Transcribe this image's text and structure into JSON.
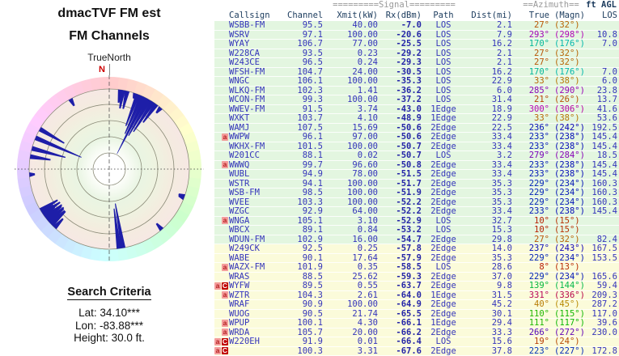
{
  "left_panel": {
    "title_line1": "dmacTVF FM est",
    "title_line2": "FM Channels",
    "compass_label": "TrueNorth",
    "north_marker": "N",
    "search_criteria": {
      "heading": "Search Criteria",
      "lat": "Lat: 34.10***",
      "lon": "Lon: -83.88***",
      "height": "Height: 30.0 ft."
    }
  },
  "table": {
    "banners": {
      "signal": "=========Signal=========",
      "azimuth": "==Azimuth==",
      "ft_agl": "ft AGL"
    },
    "headers": {
      "callsign": "Callsign",
      "channel": "Channel",
      "xmit": "Xmit(kW)",
      "rx": "Rx(dBm)",
      "path": "Path",
      "dist": "Dist(mi)",
      "true": "True",
      "magn": "(Magn)",
      "los": "LOS"
    },
    "rows": [
      {
        "badges": [],
        "callsign": "WSBB-FM",
        "channel": "95.5",
        "xmit": "40.00",
        "rx": "-7.0",
        "path": "LOS",
        "dist": "2.1",
        "true": "27°",
        "magn": "(32°)",
        "los": ""
      },
      {
        "badges": [],
        "callsign": "WSRV",
        "channel": "97.1",
        "xmit": "100.00",
        "rx": "-20.6",
        "path": "LOS",
        "dist": "7.9",
        "true": "293°",
        "magn": "(298°)",
        "los": "10.8"
      },
      {
        "badges": [],
        "callsign": "WYAY",
        "channel": "106.7",
        "xmit": "77.00",
        "rx": "-25.5",
        "path": "LOS",
        "dist": "16.2",
        "true": "170°",
        "magn": "(176°)",
        "los": "7.0"
      },
      {
        "badges": [],
        "callsign": "W228CA",
        "channel": "93.5",
        "xmit": "0.23",
        "rx": "-29.2",
        "path": "LOS",
        "dist": "2.1",
        "true": "27°",
        "magn": "(32°)",
        "los": ""
      },
      {
        "badges": [],
        "callsign": "W243CE",
        "channel": "96.5",
        "xmit": "0.24",
        "rx": "-29.3",
        "path": "LOS",
        "dist": "2.1",
        "true": "27°",
        "magn": "(32°)",
        "los": ""
      },
      {
        "badges": [],
        "callsign": "WFSH-FM",
        "channel": "104.7",
        "xmit": "24.00",
        "rx": "-30.5",
        "path": "LOS",
        "dist": "16.2",
        "true": "170°",
        "magn": "(176°)",
        "los": "7.0"
      },
      {
        "badges": [],
        "callsign": "WNGC",
        "channel": "106.1",
        "xmit": "100.00",
        "rx": "-35.3",
        "path": "LOS",
        "dist": "22.9",
        "true": "33°",
        "magn": "(38°)",
        "los": "6.0"
      },
      {
        "badges": [],
        "callsign": "WLKQ-FM",
        "channel": "102.3",
        "xmit": "1.41",
        "rx": "-36.2",
        "path": "LOS",
        "dist": "6.0",
        "true": "285°",
        "magn": "(290°)",
        "los": "23.8"
      },
      {
        "badges": [],
        "callsign": "WCON-FM",
        "channel": "99.3",
        "xmit": "100.00",
        "rx": "-37.2",
        "path": "LOS",
        "dist": "31.4",
        "true": "21°",
        "magn": "(26°)",
        "los": "13.7"
      },
      {
        "badges": [],
        "callsign": "WWEV-FM",
        "channel": "91.5",
        "xmit": "3.74",
        "rx": "-43.0",
        "path": "1Edge",
        "dist": "18.9",
        "true": "300°",
        "magn": "(306°)",
        "los": "41.6"
      },
      {
        "badges": [],
        "callsign": "WXKT",
        "channel": "103.7",
        "xmit": "4.10",
        "rx": "-48.9",
        "path": "1Edge",
        "dist": "22.9",
        "true": "33°",
        "magn": "(38°)",
        "los": "53.6"
      },
      {
        "badges": [],
        "callsign": "WAMJ",
        "channel": "107.5",
        "xmit": "15.69",
        "rx": "-50.6",
        "path": "2Edge",
        "dist": "22.5",
        "true": "236°",
        "magn": "(242°)",
        "los": "192.5"
      },
      {
        "badges": [
          "a"
        ],
        "callsign": "WWPW",
        "channel": "96.1",
        "xmit": "97.00",
        "rx": "-50.6",
        "path": "2Edge",
        "dist": "33.4",
        "true": "233°",
        "magn": "(238°)",
        "los": "145.4"
      },
      {
        "badges": [],
        "callsign": "WKHX-FM",
        "channel": "101.5",
        "xmit": "100.00",
        "rx": "-50.7",
        "path": "2Edge",
        "dist": "33.4",
        "true": "233°",
        "magn": "(238°)",
        "los": "145.4"
      },
      {
        "badges": [],
        "callsign": "W201CC",
        "channel": "88.1",
        "xmit": "0.02",
        "rx": "-50.7",
        "path": "LOS",
        "dist": "3.2",
        "true": "279°",
        "magn": "(284°)",
        "los": "18.5"
      },
      {
        "badges": [
          "a"
        ],
        "callsign": "WWWQ",
        "channel": "99.7",
        "xmit": "96.60",
        "rx": "-50.8",
        "path": "2Edge",
        "dist": "33.4",
        "true": "233°",
        "magn": "(238°)",
        "los": "145.4"
      },
      {
        "badges": [],
        "callsign": "WUBL",
        "channel": "94.9",
        "xmit": "78.00",
        "rx": "-51.5",
        "path": "2Edge",
        "dist": "33.4",
        "true": "233°",
        "magn": "(238°)",
        "los": "145.4"
      },
      {
        "badges": [],
        "callsign": "WSTR",
        "channel": "94.1",
        "xmit": "100.00",
        "rx": "-51.7",
        "path": "2Edge",
        "dist": "35.3",
        "true": "229°",
        "magn": "(234°)",
        "los": "160.3"
      },
      {
        "badges": [],
        "callsign": "WSB-FM",
        "channel": "98.5",
        "xmit": "100.00",
        "rx": "-51.9",
        "path": "2Edge",
        "dist": "35.3",
        "true": "229°",
        "magn": "(234°)",
        "los": "160.3"
      },
      {
        "badges": [],
        "callsign": "WVEE",
        "channel": "103.3",
        "xmit": "100.00",
        "rx": "-52.2",
        "path": "2Edge",
        "dist": "35.3",
        "true": "229°",
        "magn": "(234°)",
        "los": "160.3"
      },
      {
        "badges": [],
        "callsign": "WZGC",
        "channel": "92.9",
        "xmit": "64.00",
        "rx": "-52.2",
        "path": "2Edge",
        "dist": "33.4",
        "true": "233°",
        "magn": "(238°)",
        "los": "145.4"
      },
      {
        "badges": [
          "a"
        ],
        "callsign": "WNGA",
        "channel": "105.1",
        "xmit": "3.10",
        "rx": "-52.9",
        "path": "LOS",
        "dist": "32.7",
        "true": "10°",
        "magn": "(15°)",
        "los": ""
      },
      {
        "badges": [],
        "callsign": "WBCX",
        "channel": "89.1",
        "xmit": "0.84",
        "rx": "-53.2",
        "path": "LOS",
        "dist": "15.3",
        "true": "10°",
        "magn": "(15°)",
        "los": ""
      },
      {
        "badges": [],
        "callsign": "WDUN-FM",
        "channel": "102.9",
        "xmit": "16.00",
        "rx": "-54.7",
        "path": "2Edge",
        "dist": "29.8",
        "true": "27°",
        "magn": "(32°)",
        "los": "82.4"
      },
      {
        "badges": [],
        "callsign": "W249CK",
        "channel": "92.5",
        "xmit": "0.25",
        "rx": "-57.8",
        "path": "2Edge",
        "dist": "14.0",
        "true": "237°",
        "magn": "(243°)",
        "los": "167.5"
      },
      {
        "badges": [],
        "callsign": "WABE",
        "channel": "90.1",
        "xmit": "17.64",
        "rx": "-57.9",
        "path": "2Edge",
        "dist": "35.3",
        "true": "229°",
        "magn": "(234°)",
        "los": "153.5"
      },
      {
        "badges": [
          "a"
        ],
        "callsign": "WAZX-FM",
        "channel": "101.9",
        "xmit": "0.35",
        "rx": "-58.5",
        "path": "LOS",
        "dist": "28.6",
        "true": "8°",
        "magn": "(13°)",
        "los": ""
      },
      {
        "badges": [],
        "callsign": "WRAS",
        "channel": "88.5",
        "xmit": "25.62",
        "rx": "-59.3",
        "path": "2Edge",
        "dist": "37.0",
        "true": "229°",
        "magn": "(234°)",
        "los": "165.6"
      },
      {
        "badges": [
          "a",
          "C"
        ],
        "callsign": "WYFW",
        "channel": "89.5",
        "xmit": "0.55",
        "rx": "-63.7",
        "path": "2Edge",
        "dist": "9.8",
        "true": "139°",
        "magn": "(144°)",
        "los": "59.4"
      },
      {
        "badges": [
          "a"
        ],
        "callsign": "WZTR",
        "channel": "104.3",
        "xmit": "2.61",
        "rx": "-64.0",
        "path": "1Edge",
        "dist": "31.5",
        "true": "331°",
        "magn": "(336°)",
        "los": "209.3"
      },
      {
        "badges": [],
        "callsign": "WRAF",
        "channel": "90.9",
        "xmit": "100.00",
        "rx": "-64.9",
        "path": "2Edge",
        "dist": "45.2",
        "true": "40°",
        "magn": "(45°)",
        "los": "287.2"
      },
      {
        "badges": [],
        "callsign": "WUOG",
        "channel": "90.5",
        "xmit": "21.74",
        "rx": "-65.5",
        "path": "2Edge",
        "dist": "30.1",
        "true": "110°",
        "magn": "(115°)",
        "los": "117.0"
      },
      {
        "badges": [
          "a"
        ],
        "callsign": "WPUP",
        "channel": "100.1",
        "xmit": "4.30",
        "rx": "-66.1",
        "path": "1Edge",
        "dist": "29.4",
        "true": "111°",
        "magn": "(117°)",
        "los": "39.6"
      },
      {
        "badges": [
          "a"
        ],
        "callsign": "WRDA",
        "channel": "105.7",
        "xmit": "20.00",
        "rx": "-66.2",
        "path": "2Edge",
        "dist": "33.3",
        "true": "266°",
        "magn": "(272°)",
        "los": "230.0"
      },
      {
        "badges": [
          "a",
          "C"
        ],
        "callsign": "W220EH",
        "channel": "91.9",
        "xmit": "0.01",
        "rx": "-66.4",
        "path": "LOS",
        "dist": "15.6",
        "true": "19°",
        "magn": "(24°)",
        "los": ""
      },
      {
        "badges": [
          "a",
          "C"
        ],
        "callsign": "",
        "channel": "100.3",
        "xmit": "3.31",
        "rx": "-67.6",
        "path": "2Edge",
        "dist": "37.8",
        "true": "223°",
        "magn": "(227°)",
        "los": "172.8"
      }
    ]
  },
  "chart_data": {
    "type": "bar",
    "polar": true,
    "title": "dmacTVF FM est",
    "subtitle": "FM Channels",
    "orientation_label": "TrueNorth",
    "angle_convention": "azimuth degrees clockwise from true north",
    "radial_value": "Rx signal (dBm), stronger = longer bar toward center",
    "radial_range": [
      -72,
      -7
    ],
    "grid": true,
    "callsigns": [
      "WSBB-FM",
      "WSRV",
      "WYAY",
      "W228CA",
      "W243CE",
      "WFSH-FM",
      "WNGC",
      "WLKQ-FM",
      "WCON-FM",
      "WWEV-FM",
      "WXKT",
      "WAMJ",
      "WWPW",
      "WKHX-FM",
      "W201CC",
      "WWWQ",
      "WUBL",
      "WSTR",
      "WSB-FM",
      "WVEE",
      "WZGC",
      "WNGA",
      "WBCX",
      "WDUN-FM",
      "W249CK",
      "WABE",
      "WAZX-FM",
      "WRAS",
      "WYFW",
      "WZTR",
      "WRAF",
      "WUOG",
      "WPUP",
      "WRDA",
      "W220EH"
    ],
    "azimuth_true_deg": [
      27,
      293,
      170,
      27,
      27,
      170,
      33,
      285,
      21,
      300,
      33,
      236,
      233,
      233,
      279,
      233,
      233,
      229,
      229,
      229,
      233,
      10,
      10,
      27,
      237,
      229,
      8,
      229,
      139,
      331,
      40,
      110,
      111,
      266,
      19
    ],
    "rx_dbm": [
      -7.0,
      -20.6,
      -25.5,
      -29.2,
      -29.3,
      -30.5,
      -35.3,
      -36.2,
      -37.2,
      -43.0,
      -48.9,
      -50.6,
      -50.6,
      -50.7,
      -50.7,
      -50.8,
      -51.5,
      -51.7,
      -51.9,
      -52.2,
      -52.2,
      -52.9,
      -53.2,
      -54.7,
      -57.8,
      -57.9,
      -58.5,
      -59.3,
      -63.7,
      -64.0,
      -64.9,
      -65.5,
      -66.1,
      -66.2,
      -66.4
    ]
  },
  "colors": {
    "row_green": "#e3f6e0",
    "row_yellow": "#fbfbda",
    "data_blue": "#3535bb",
    "rx_blue": "#2525a8",
    "header_navy": "#1a3a5c",
    "banner_gray": "#999999",
    "bar_navy": "#1e1ea8",
    "badge_a_bg": "#f49c9c",
    "badge_a_fg": "#b32020",
    "badge_c_bg": "#c00000",
    "north_red": "#cc0000"
  }
}
